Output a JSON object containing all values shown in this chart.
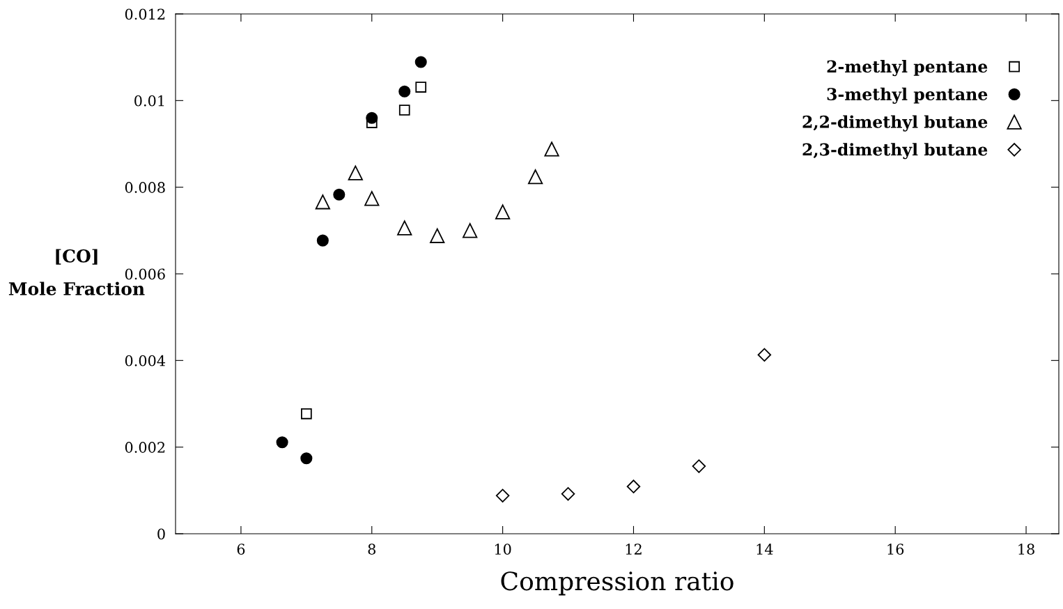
{
  "chart_data": {
    "type": "scatter",
    "xlabel": "Compression ratio",
    "ylabel": "[CO]\nMole Fraction",
    "xlim": [
      5,
      18.5
    ],
    "ylim": [
      0,
      0.012
    ],
    "xticks": [
      6,
      8,
      10,
      12,
      14,
      16,
      18
    ],
    "yticks": [
      0,
      0.002,
      0.004,
      0.006,
      0.008,
      0.01,
      0.012
    ],
    "grid": false,
    "legend": "top right",
    "series": [
      {
        "name": "2-methyl pentane",
        "color": "#000000",
        "marker": "square",
        "x": [
          7,
          8,
          8.5,
          8.75
        ],
        "values": [
          0.00277,
          0.00949,
          0.00978,
          0.01031
        ]
      },
      {
        "name": "3-methyl pentane",
        "color": "#000000",
        "marker": "circle",
        "x": [
          6.63,
          7,
          7.25,
          7.5,
          8,
          8.5,
          8.75
        ],
        "values": [
          0.00211,
          0.00174,
          0.00677,
          0.00783,
          0.0096,
          0.01021,
          0.01089
        ]
      },
      {
        "name": "2,2-dimethyl butane",
        "color": "#000000",
        "marker": "triangle",
        "x": [
          7.25,
          7.75,
          8,
          8.5,
          9,
          9.5,
          10,
          10.5,
          10.75
        ],
        "values": [
          0.00766,
          0.00833,
          0.00774,
          0.00706,
          0.00688,
          0.007,
          0.00743,
          0.00824,
          0.00888
        ]
      },
      {
        "name": "2,3-dimethyl butane",
        "color": "#000000",
        "marker": "diamond",
        "x": [
          10,
          11,
          12,
          13,
          14
        ],
        "values": [
          0.00088,
          0.00092,
          0.00109,
          0.00156,
          0.00413
        ]
      }
    ]
  }
}
